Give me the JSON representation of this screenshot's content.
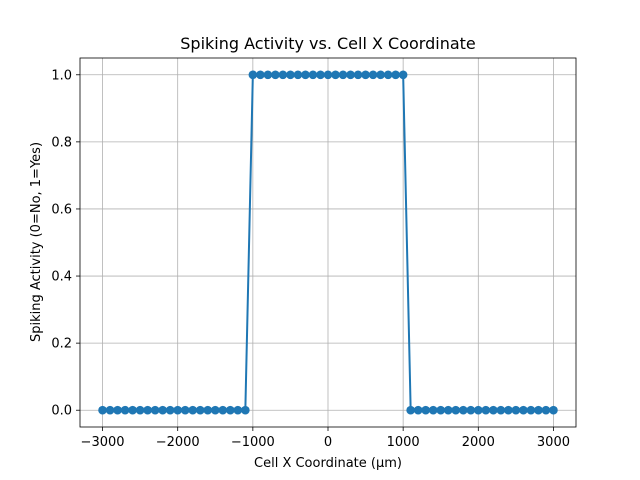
{
  "chart_data": {
    "type": "line",
    "title": "Spiking Activity vs. Cell X Coordinate",
    "xlabel": "Cell X Coordinate (µm)",
    "ylabel": "Spiking Activity (0=No, 1=Yes)",
    "xlim": [
      -3300,
      3300
    ],
    "ylim": [
      -0.05,
      1.05
    ],
    "xticks": [
      -3000,
      -2000,
      -1000,
      0,
      1000,
      2000,
      3000
    ],
    "xtick_labels": [
      "−3000",
      "−2000",
      "−1000",
      "0",
      "1000",
      "2000",
      "3000"
    ],
    "yticks": [
      0.0,
      0.2,
      0.4,
      0.6,
      0.8,
      1.0
    ],
    "ytick_labels": [
      "0.0",
      "0.2",
      "0.4",
      "0.6",
      "0.8",
      "1.0"
    ],
    "grid": true,
    "color": "#1f77b4",
    "marker": "circle",
    "series": [
      {
        "x": [
          -3000,
          -2900,
          -2800,
          -2700,
          -2600,
          -2500,
          -2400,
          -2300,
          -2200,
          -2100,
          -2000,
          -1900,
          -1800,
          -1700,
          -1600,
          -1500,
          -1400,
          -1300,
          -1200,
          -1100,
          -1000,
          -900,
          -800,
          -700,
          -600,
          -500,
          -400,
          -300,
          -200,
          -100,
          0,
          100,
          200,
          300,
          400,
          500,
          600,
          700,
          800,
          900,
          1000,
          1100,
          1200,
          1300,
          1400,
          1500,
          1600,
          1700,
          1800,
          1900,
          2000,
          2100,
          2200,
          2300,
          2400,
          2500,
          2600,
          2700,
          2800,
          2900,
          3000
        ],
        "y": [
          0,
          0,
          0,
          0,
          0,
          0,
          0,
          0,
          0,
          0,
          0,
          0,
          0,
          0,
          0,
          0,
          0,
          0,
          0,
          0,
          1,
          1,
          1,
          1,
          1,
          1,
          1,
          1,
          1,
          1,
          1,
          1,
          1,
          1,
          1,
          1,
          1,
          1,
          1,
          1,
          1,
          0,
          0,
          0,
          0,
          0,
          0,
          0,
          0,
          0,
          0,
          0,
          0,
          0,
          0,
          0,
          0,
          0,
          0,
          0,
          0
        ]
      }
    ]
  }
}
